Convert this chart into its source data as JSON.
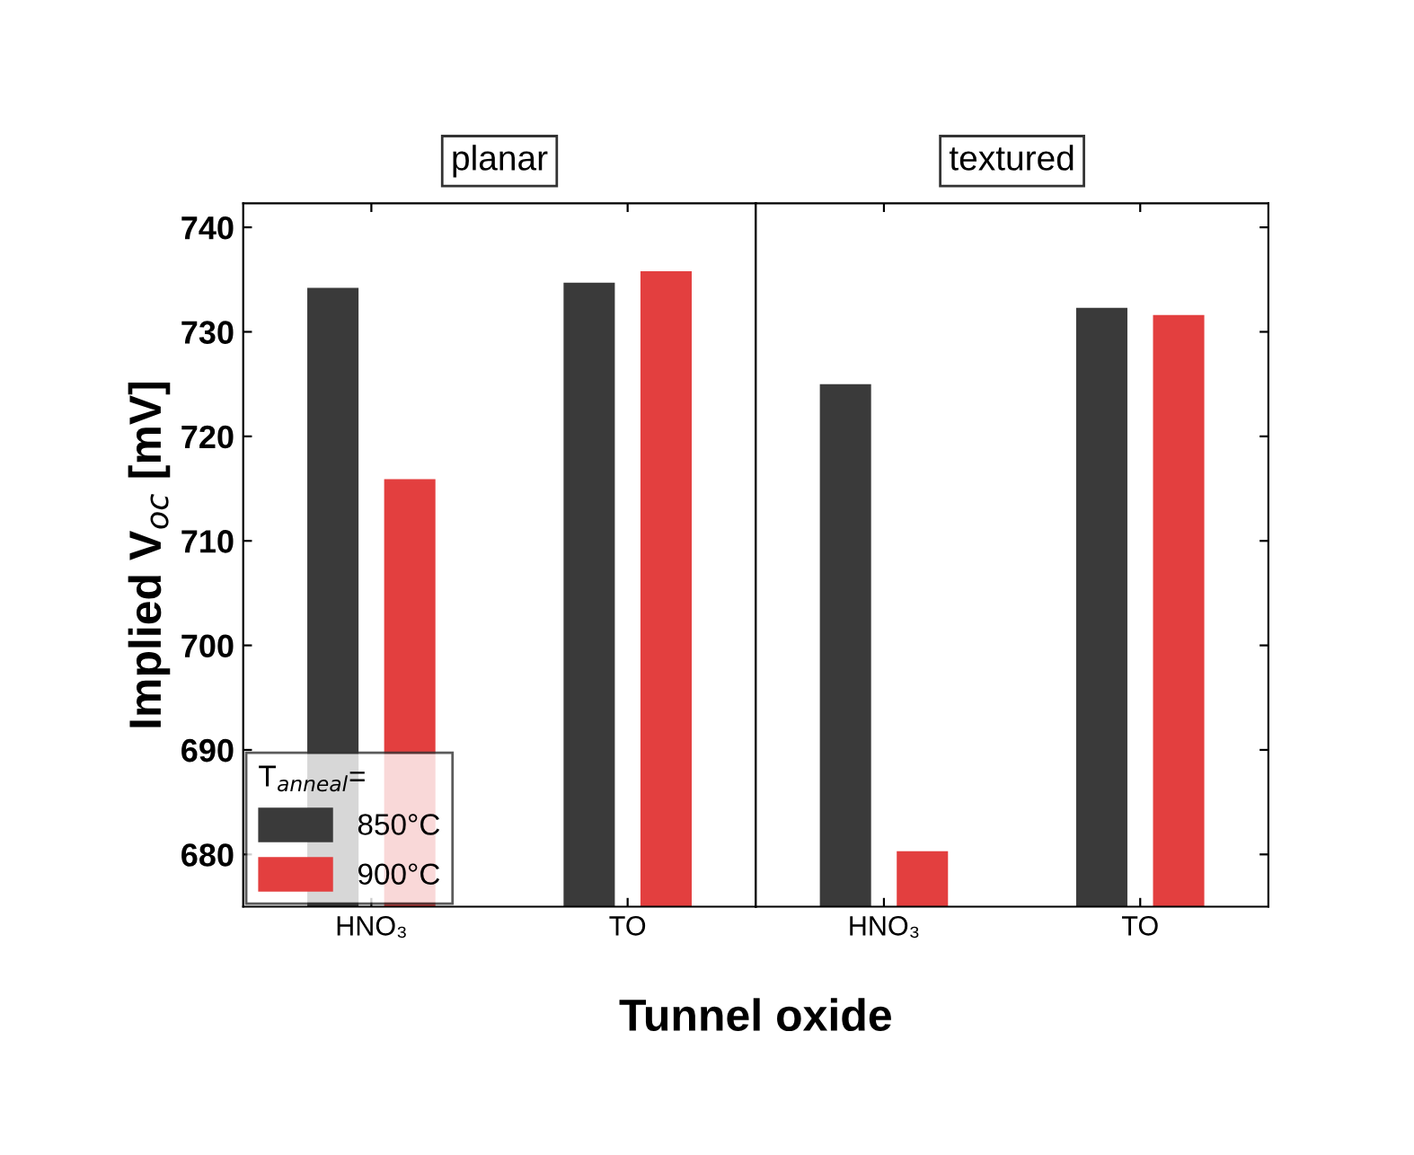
{
  "chart_data": [
    {
      "type": "bar",
      "title": "planar",
      "xlabel": "Tunnel oxide",
      "ylabel": "Implied V$_{oc}$ [mV]",
      "legend_title": "T$_{anneal}$=",
      "categories": [
        "HNO₃",
        "TO"
      ],
      "series": [
        {
          "name": "850°C",
          "color": "#3a3a3a",
          "values": [
            734.2,
            734.7
          ]
        },
        {
          "name": "900°C",
          "color": "#e33f3f",
          "values": [
            715.9,
            735.8
          ]
        }
      ],
      "ylim": [
        675,
        742.3
      ],
      "yticks": [
        680,
        690,
        700,
        710,
        720,
        730,
        740
      ],
      "legend": "bottom left",
      "grid": false
    },
    {
      "type": "bar",
      "title": "textured",
      "categories": [
        "HNO₃",
        "TO"
      ],
      "series": [
        {
          "color": "#3a3a3a",
          "values": [
            725.0,
            732.3
          ]
        },
        {
          "color": "#e33f3f",
          "values": [
            680.3,
            731.6
          ]
        }
      ],
      "ylim": [
        675,
        742.3
      ],
      "yticks": [
        680,
        690,
        700,
        710,
        720,
        730,
        740
      ],
      "tick_labels": "x",
      "grid": false
    }
  ]
}
